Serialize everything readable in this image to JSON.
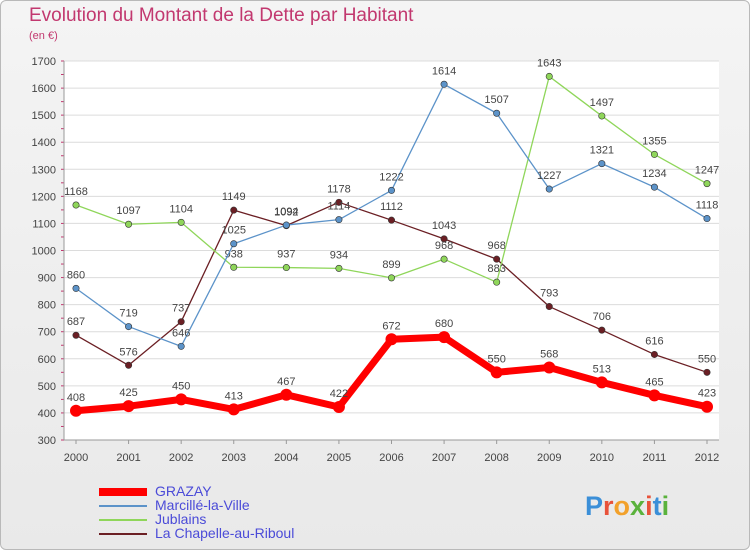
{
  "title": "Evolution du Montant de la Dette par Habitant",
  "subtitle": "(en €)",
  "logo": {
    "letters": [
      "P",
      "r",
      "o",
      "x",
      "i",
      "t",
      "i"
    ],
    "colors": [
      "#3b8fd8",
      "#e8523a",
      "#f2a12b",
      "#5ab23c",
      "#e8523a",
      "#3b8fd8",
      "#5ab23c"
    ]
  },
  "chart_data": {
    "type": "line",
    "x": [
      "2000",
      "2001",
      "2002",
      "2003",
      "2004",
      "2005",
      "2006",
      "2007",
      "2008",
      "2009",
      "2010",
      "2011",
      "2012"
    ],
    "ylim": [
      300,
      1700
    ],
    "yticks": [
      "300",
      "400",
      "500",
      "600",
      "700",
      "800",
      "900",
      "1000",
      "1100",
      "1200",
      "1300",
      "1400",
      "1500",
      "1600",
      "1700"
    ],
    "grid": "horizontal",
    "legend": "bottom-left",
    "series": [
      {
        "name": "La Chapelle-au-Riboul",
        "color": "#6b1f24",
        "width": 1.3,
        "values": [
          687,
          576,
          737,
          1149,
          1092,
          1178,
          1112,
          1043,
          968,
          793,
          706,
          616,
          550
        ]
      },
      {
        "name": "Jublains",
        "color": "#8fd65a",
        "width": 1.3,
        "values": [
          1168,
          1097,
          1104,
          938,
          937,
          934,
          899,
          968,
          883,
          1643,
          1497,
          1355,
          1247
        ]
      },
      {
        "name": "Marcillé-la-Ville",
        "color": "#5c93c9",
        "width": 1.3,
        "values": [
          860,
          719,
          646,
          1025,
          1094,
          1114,
          1222,
          1614,
          1507,
          1227,
          1321,
          1234,
          1118
        ]
      },
      {
        "name": "GRAZAY",
        "color": "#ff0000",
        "width": 7,
        "values": [
          408,
          425,
          450,
          413,
          467,
          422,
          672,
          680,
          550,
          568,
          513,
          465,
          423
        ]
      }
    ],
    "legend_order": [
      "GRAZAY",
      "Marcillé-la-Ville",
      "Jublains",
      "La Chapelle-au-Riboul"
    ]
  }
}
